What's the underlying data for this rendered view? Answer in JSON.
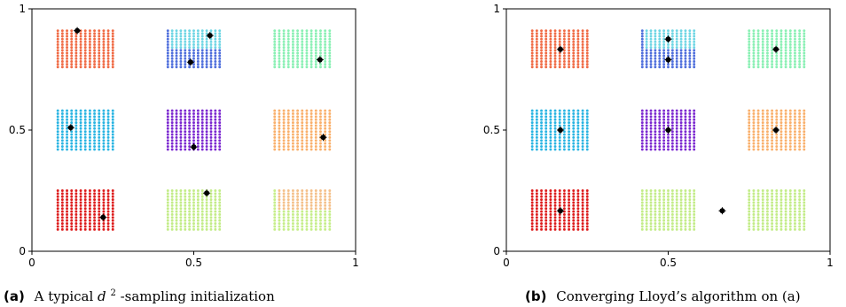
{
  "chart_data": [
    {
      "type": "scatter",
      "panel_label": "(a)",
      "caption": "A typical d²-sampling initialization",
      "caption_main": "A typical ",
      "caption_var": "d",
      "caption_sup": "2",
      "caption_rest": "-sampling initialization",
      "xlim": [
        0,
        1
      ],
      "ylim": [
        0,
        1
      ],
      "xticks": [
        0,
        0.5,
        1
      ],
      "yticks": [
        0,
        0.5,
        1
      ],
      "xtick_labels": [
        "0",
        "0.5",
        "1"
      ],
      "ytick_labels": [
        "0",
        "0.5",
        "1"
      ],
      "grid": false,
      "clusters": [
        {
          "x_range": [
            0.08,
            0.25
          ],
          "y_range": [
            0.76,
            0.91
          ],
          "color": "#f06b45"
        },
        {
          "x_range": [
            0.42,
            0.58
          ],
          "y_range": [
            0.76,
            0.91
          ],
          "color": "#4f6fdc",
          "upper_color": "#6fd6e4"
        },
        {
          "x_range": [
            0.75,
            0.92
          ],
          "y_range": [
            0.76,
            0.91
          ],
          "color": "#8af0b4"
        },
        {
          "x_range": [
            0.08,
            0.25
          ],
          "y_range": [
            0.42,
            0.58
          ],
          "color": "#29b4e2"
        },
        {
          "x_range": [
            0.42,
            0.58
          ],
          "y_range": [
            0.42,
            0.58
          ],
          "color": "#7b28d0"
        },
        {
          "x_range": [
            0.75,
            0.92
          ],
          "y_range": [
            0.42,
            0.58
          ],
          "color": "#f9b06c"
        },
        {
          "x_range": [
            0.08,
            0.25
          ],
          "y_range": [
            0.09,
            0.25
          ],
          "color": "#dd1c1c"
        },
        {
          "x_range": [
            0.42,
            0.58
          ],
          "y_range": [
            0.09,
            0.25
          ],
          "color": "#c3ec88"
        },
        {
          "x_range": [
            0.75,
            0.92
          ],
          "y_range": [
            0.09,
            0.25
          ],
          "color": "#c6ee8a",
          "upper_color": "#f4c08a"
        }
      ],
      "centers": [
        [
          0.14,
          0.91
        ],
        [
          0.55,
          0.89
        ],
        [
          0.49,
          0.78
        ],
        [
          0.89,
          0.79
        ],
        [
          0.12,
          0.51
        ],
        [
          0.5,
          0.43
        ],
        [
          0.9,
          0.47
        ],
        [
          0.22,
          0.14
        ],
        [
          0.54,
          0.24
        ]
      ]
    },
    {
      "type": "scatter",
      "panel_label": "(b)",
      "caption": "Converging Lloyd’s algorithm on (a)",
      "caption_main": "Converging Lloyd’s algorithm on (a)",
      "caption_var": "",
      "caption_sup": "",
      "caption_rest": "",
      "xlim": [
        0,
        1
      ],
      "ylim": [
        0,
        1
      ],
      "xticks": [
        0,
        0.5,
        1
      ],
      "yticks": [
        0,
        0.5,
        1
      ],
      "xtick_labels": [
        "0",
        "0.5",
        "1"
      ],
      "ytick_labels": [
        "0",
        "0.5",
        "1"
      ],
      "grid": false,
      "clusters": [
        {
          "x_range": [
            0.08,
            0.25
          ],
          "y_range": [
            0.76,
            0.91
          ],
          "color": "#f06b45"
        },
        {
          "x_range": [
            0.42,
            0.58
          ],
          "y_range": [
            0.76,
            0.91
          ],
          "color": "#4f6fdc",
          "upper_color": "#6fd6e4"
        },
        {
          "x_range": [
            0.75,
            0.92
          ],
          "y_range": [
            0.76,
            0.91
          ],
          "color": "#8af0b4"
        },
        {
          "x_range": [
            0.08,
            0.25
          ],
          "y_range": [
            0.42,
            0.58
          ],
          "color": "#29b4e2"
        },
        {
          "x_range": [
            0.42,
            0.58
          ],
          "y_range": [
            0.42,
            0.58
          ],
          "color": "#7b28d0"
        },
        {
          "x_range": [
            0.75,
            0.92
          ],
          "y_range": [
            0.42,
            0.58
          ],
          "color": "#f9b06c"
        },
        {
          "x_range": [
            0.08,
            0.25
          ],
          "y_range": [
            0.09,
            0.25
          ],
          "color": "#dd1c1c"
        },
        {
          "x_range": [
            0.42,
            0.58
          ],
          "y_range": [
            0.09,
            0.25
          ],
          "color": "#c3ec88"
        },
        {
          "x_range": [
            0.75,
            0.92
          ],
          "y_range": [
            0.09,
            0.25
          ],
          "color": "#c3ec88"
        }
      ],
      "centers": [
        [
          0.167,
          0.833
        ],
        [
          0.5,
          0.875
        ],
        [
          0.5,
          0.79
        ],
        [
          0.833,
          0.833
        ],
        [
          0.167,
          0.5
        ],
        [
          0.5,
          0.5
        ],
        [
          0.833,
          0.5
        ],
        [
          0.167,
          0.167
        ],
        [
          0.667,
          0.167
        ]
      ]
    }
  ]
}
